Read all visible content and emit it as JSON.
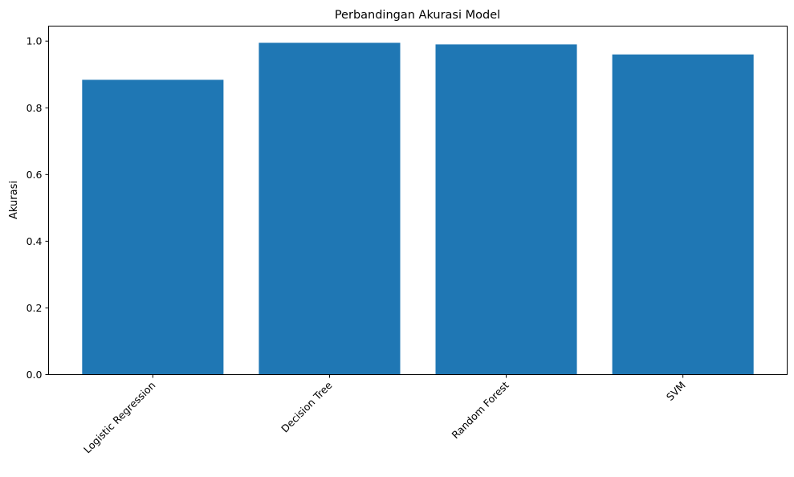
{
  "chart_data": {
    "type": "bar",
    "title": "Perbandingan Akurasi Model",
    "xlabel": "",
    "ylabel": "Akurasi",
    "categories": [
      "Logistic Regression",
      "Decision Tree",
      "Random Forest",
      "SVM"
    ],
    "values": [
      0.884,
      0.995,
      0.99,
      0.96
    ],
    "ylim": [
      0,
      1.045
    ],
    "yticks": [
      0.0,
      0.2,
      0.4,
      0.6,
      0.8,
      1.0
    ],
    "ytick_labels": [
      "0.0",
      "0.2",
      "0.4",
      "0.6",
      "0.8",
      "1.0"
    ],
    "xtick_rotation": 45,
    "grid": false,
    "legend": "none",
    "bar_color": "#1f77b4"
  }
}
